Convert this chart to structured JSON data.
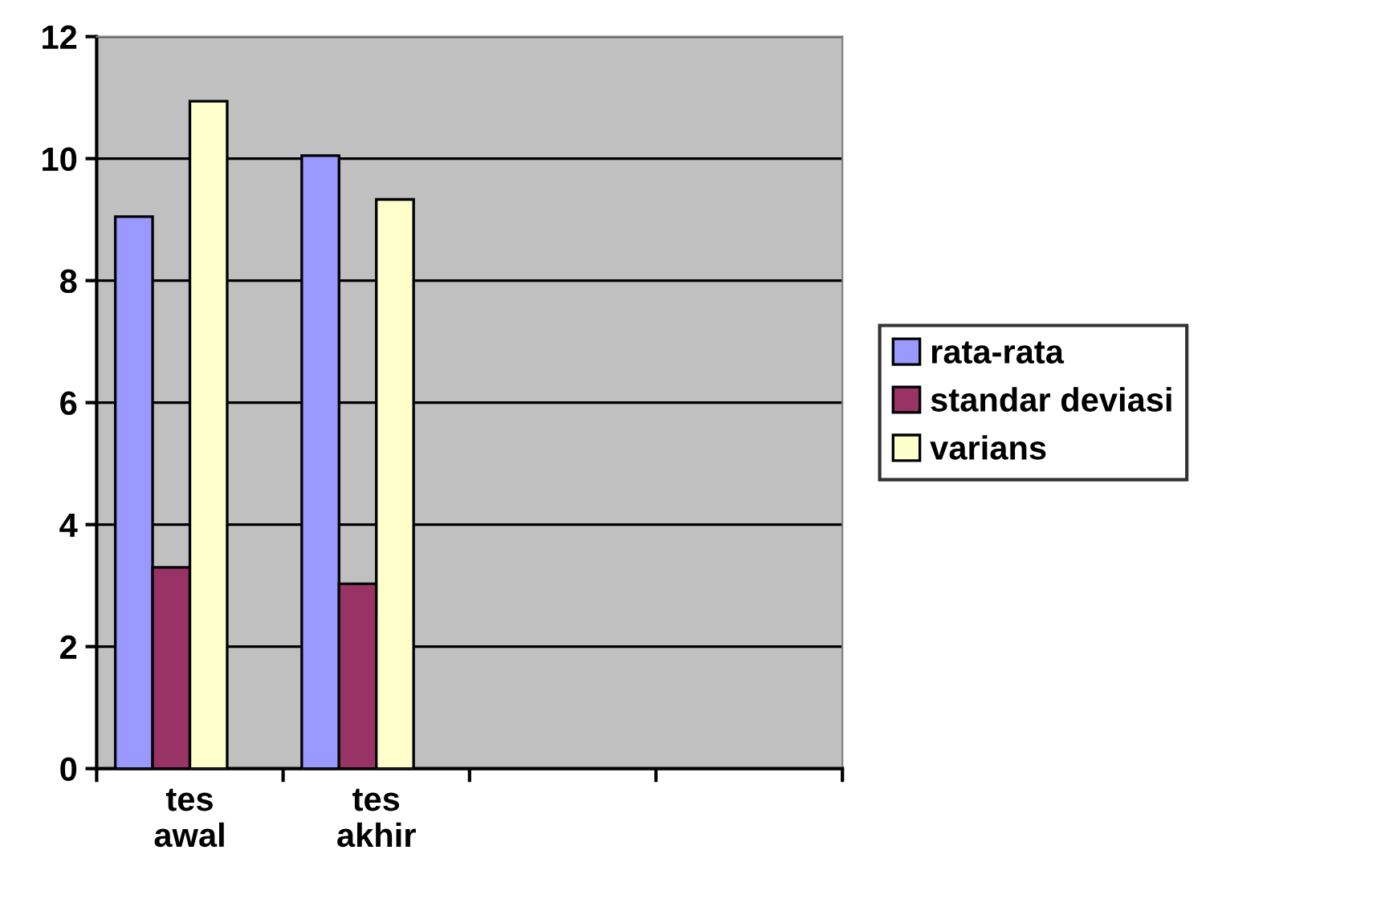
{
  "chart_data": {
    "type": "bar",
    "categories": [
      "tes\nawal",
      "tes\nakhir",
      null,
      null
    ],
    "series": [
      {
        "name": "rata-rata",
        "color": "#9999ff",
        "values": [
          9.05,
          10.05,
          null,
          null
        ]
      },
      {
        "name": "standar deviasi",
        "color": "#993366",
        "values": [
          3.3,
          3.03,
          null,
          null
        ]
      },
      {
        "name": "varians",
        "color": "#ffffcc",
        "values": [
          10.94,
          9.33,
          null,
          null
        ]
      }
    ],
    "ylim": [
      0,
      12
    ],
    "yticks": [
      0,
      2,
      4,
      6,
      8,
      10,
      12
    ],
    "grid": "y",
    "legend": "right"
  }
}
